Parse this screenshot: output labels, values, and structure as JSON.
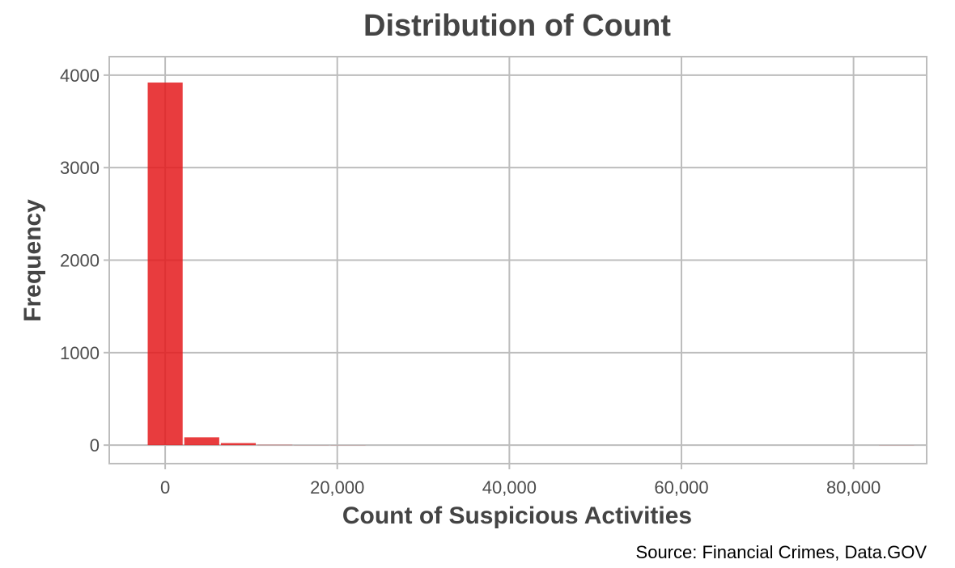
{
  "chart_data": {
    "type": "bar",
    "title": "Distribution of Count",
    "xlabel": "Count of Suspicious Activities",
    "ylabel": "Frequency",
    "caption": "Source: Financial Crimes, Data.GOV",
    "bin_width": 4250,
    "bins": [
      {
        "start": -2125,
        "end": 2125,
        "count": 3920
      },
      {
        "start": 2125,
        "end": 6375,
        "count": 85
      },
      {
        "start": 6375,
        "end": 10625,
        "count": 22
      },
      {
        "start": 10625,
        "end": 14875,
        "count": 3
      },
      {
        "start": 14875,
        "end": 19125,
        "count": 1
      },
      {
        "start": 19125,
        "end": 23375,
        "count": 1
      },
      {
        "start": 23375,
        "end": 27625,
        "count": 0
      },
      {
        "start": 27625,
        "end": 31875,
        "count": 0
      },
      {
        "start": 31875,
        "end": 36125,
        "count": 0
      },
      {
        "start": 36125,
        "end": 40375,
        "count": 0
      },
      {
        "start": 40375,
        "end": 44625,
        "count": 0
      },
      {
        "start": 44625,
        "end": 48875,
        "count": 0
      },
      {
        "start": 48875,
        "end": 53125,
        "count": 0
      },
      {
        "start": 53125,
        "end": 57375,
        "count": 0
      },
      {
        "start": 57375,
        "end": 61625,
        "count": 0
      },
      {
        "start": 61625,
        "end": 65875,
        "count": 0
      },
      {
        "start": 65875,
        "end": 70125,
        "count": 0
      },
      {
        "start": 70125,
        "end": 74375,
        "count": 0
      },
      {
        "start": 74375,
        "end": 78625,
        "count": 0
      },
      {
        "start": 78625,
        "end": 82875,
        "count": 0
      },
      {
        "start": 82875,
        "end": 87125,
        "count": 1
      }
    ],
    "xlim": [
      -6500,
      88500
    ],
    "ylim": [
      -200,
      4200
    ],
    "xticks": [
      0,
      20000,
      40000,
      60000,
      80000
    ],
    "xtick_labels": [
      "0",
      "20,000",
      "40,000",
      "60,000",
      "80,000"
    ],
    "yticks": [
      0,
      1000,
      2000,
      3000,
      4000
    ],
    "ytick_labels": [
      "0",
      "1000",
      "2000",
      "3000",
      "4000"
    ],
    "grid": true,
    "bar_color": "#e41a1c",
    "bar_opacity": 0.85,
    "grid_color": "#bdbdbd",
    "panel_border_color": "#bdbdbd"
  }
}
